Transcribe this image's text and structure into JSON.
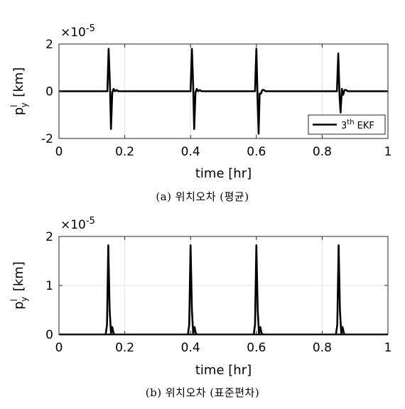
{
  "chart_data": [
    {
      "type": "line",
      "caption": "(a) 위치오차 (평균)",
      "xlabel": "time [hr]",
      "ylabel_main": "p",
      "ylabel_sup": "l",
      "ylabel_sub": "y",
      "ylabel_unit": "[km]",
      "exponent_base": "×10",
      "exponent_power": "-5",
      "xlim": [
        0,
        1
      ],
      "ylim": [
        -2,
        2
      ],
      "xticks": [
        0,
        0.2,
        0.4,
        0.6,
        0.8,
        1
      ],
      "xtick_labels": [
        "0",
        "0.2",
        "0.4",
        "0.6",
        "0.8",
        "1"
      ],
      "yticks": [
        -2,
        0,
        2
      ],
      "ytick_labels": [
        "-2",
        "0",
        "2"
      ],
      "grid": true,
      "legend_placement": "bottom-right",
      "legend": {
        "main": "3",
        "sup": "th",
        "rest": " EKF"
      },
      "series": [
        {
          "name": "3th EKF",
          "color": "#000000",
          "x": [
            0,
            0.147,
            0.151,
            0.155,
            0.158,
            0.162,
            0.166,
            0.17,
            0.175,
            0.18,
            0.185,
            0.4,
            0.404,
            0.408,
            0.411,
            0.415,
            0.419,
            0.423,
            0.428,
            0.433,
            0.438,
            0.596,
            0.6,
            0.604,
            0.607,
            0.61,
            0.614,
            0.618,
            0.623,
            0.628,
            0.633,
            0.845,
            0.849,
            0.853,
            0.856,
            0.86,
            0.864,
            0.868,
            0.873,
            0.878,
            0.883,
            1
          ],
          "y": [
            0,
            0,
            1.8,
            0.2,
            -1.6,
            -0.05,
            0.1,
            0.0,
            0.05,
            0,
            0,
            0,
            1.8,
            0.2,
            -1.6,
            -0.05,
            0.1,
            0.0,
            0.05,
            0,
            0,
            0,
            1.8,
            -0.5,
            -1.8,
            -0.1,
            -0.1,
            0.05,
            0.05,
            0,
            0,
            0,
            1.6,
            -0.2,
            -0.9,
            0.1,
            -0.15,
            0.05,
            0.05,
            0,
            0,
            0
          ]
        }
      ]
    },
    {
      "type": "line",
      "caption": "(b) 위치오차 (표준편차)",
      "xlabel": "time [hr]",
      "ylabel_main": "p",
      "ylabel_sup": "l",
      "ylabel_sub": "y",
      "ylabel_unit": "[km]",
      "exponent_base": "×10",
      "exponent_power": "-5",
      "xlim": [
        0,
        1
      ],
      "ylim": [
        0,
        2
      ],
      "xticks": [
        0,
        0.2,
        0.4,
        0.6,
        0.8,
        1
      ],
      "xtick_labels": [
        "0",
        "0.2",
        "0.4",
        "0.6",
        "0.8",
        "1"
      ],
      "yticks": [
        0,
        1,
        2
      ],
      "ytick_labels": [
        "0",
        "1",
        "2"
      ],
      "grid": true,
      "series": [
        {
          "name": "3th EKF",
          "color": "#000000",
          "x": [
            0,
            0.142,
            0.146,
            0.15,
            0.154,
            0.158,
            0.162,
            0.166,
            0.17,
            1.0
          ],
          "y": [
            0,
            0,
            0.2,
            1.82,
            0.5,
            0.02,
            0.15,
            0.02,
            0,
            0
          ],
          "repeat_offsets": [
            0,
            0.25,
            0.45,
            0.7
          ]
        }
      ]
    }
  ]
}
